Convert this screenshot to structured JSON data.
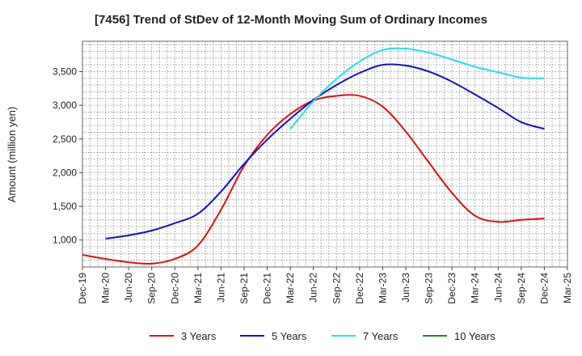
{
  "chart_data": {
    "type": "line",
    "title": "[7456]  Trend of StDev of 12-Month Moving Sum of Ordinary Incomes",
    "xlabel": "",
    "ylabel": "Amount (million yen)",
    "x_ticks": [
      "Dec-19",
      "Mar-20",
      "Jun-20",
      "Sep-20",
      "Dec-20",
      "Mar-21",
      "Jun-21",
      "Sep-21",
      "Dec-21",
      "Mar-22",
      "Jun-22",
      "Sep-22",
      "Dec-22",
      "Mar-23",
      "Jun-23",
      "Sep-23",
      "Dec-23",
      "Mar-24",
      "Jun-24",
      "Sep-24",
      "Dec-24",
      "Mar-25"
    ],
    "y_ticks": [
      1000,
      1500,
      2000,
      2500,
      3000,
      3500
    ],
    "y_tick_labels": [
      "1,000",
      "1,500",
      "2,000",
      "2,500",
      "3,000",
      "3,500"
    ],
    "ylim": [
      600,
      3950
    ],
    "grid": true,
    "legend_position": "bottom",
    "series": [
      {
        "name": "3 Years",
        "color": "#dd1111",
        "values": [
          780,
          720,
          670,
          650,
          720,
          920,
          1450,
          2100,
          2560,
          2870,
          3070,
          3140,
          3140,
          2980,
          2610,
          2150,
          1700,
          1360,
          1270,
          1300,
          1320,
          null
        ]
      },
      {
        "name": "5 Years",
        "color": "#1111cc",
        "values": [
          null,
          1020,
          1070,
          1140,
          1250,
          1390,
          1720,
          2130,
          2490,
          2800,
          3080,
          3300,
          3480,
          3600,
          3590,
          3500,
          3350,
          3160,
          2960,
          2750,
          2650,
          null
        ]
      },
      {
        "name": "7 Years",
        "color": "#22e0ee",
        "values": [
          null,
          null,
          null,
          null,
          null,
          null,
          null,
          null,
          null,
          2650,
          3060,
          3390,
          3650,
          3820,
          3840,
          3780,
          3680,
          3570,
          3490,
          3410,
          3400,
          null
        ]
      },
      {
        "name": "10 Years",
        "color": "#228822",
        "values": [
          null,
          null,
          null,
          null,
          null,
          null,
          null,
          null,
          null,
          null,
          null,
          null,
          null,
          null,
          null,
          null,
          null,
          null,
          null,
          null,
          null,
          null
        ]
      }
    ]
  }
}
